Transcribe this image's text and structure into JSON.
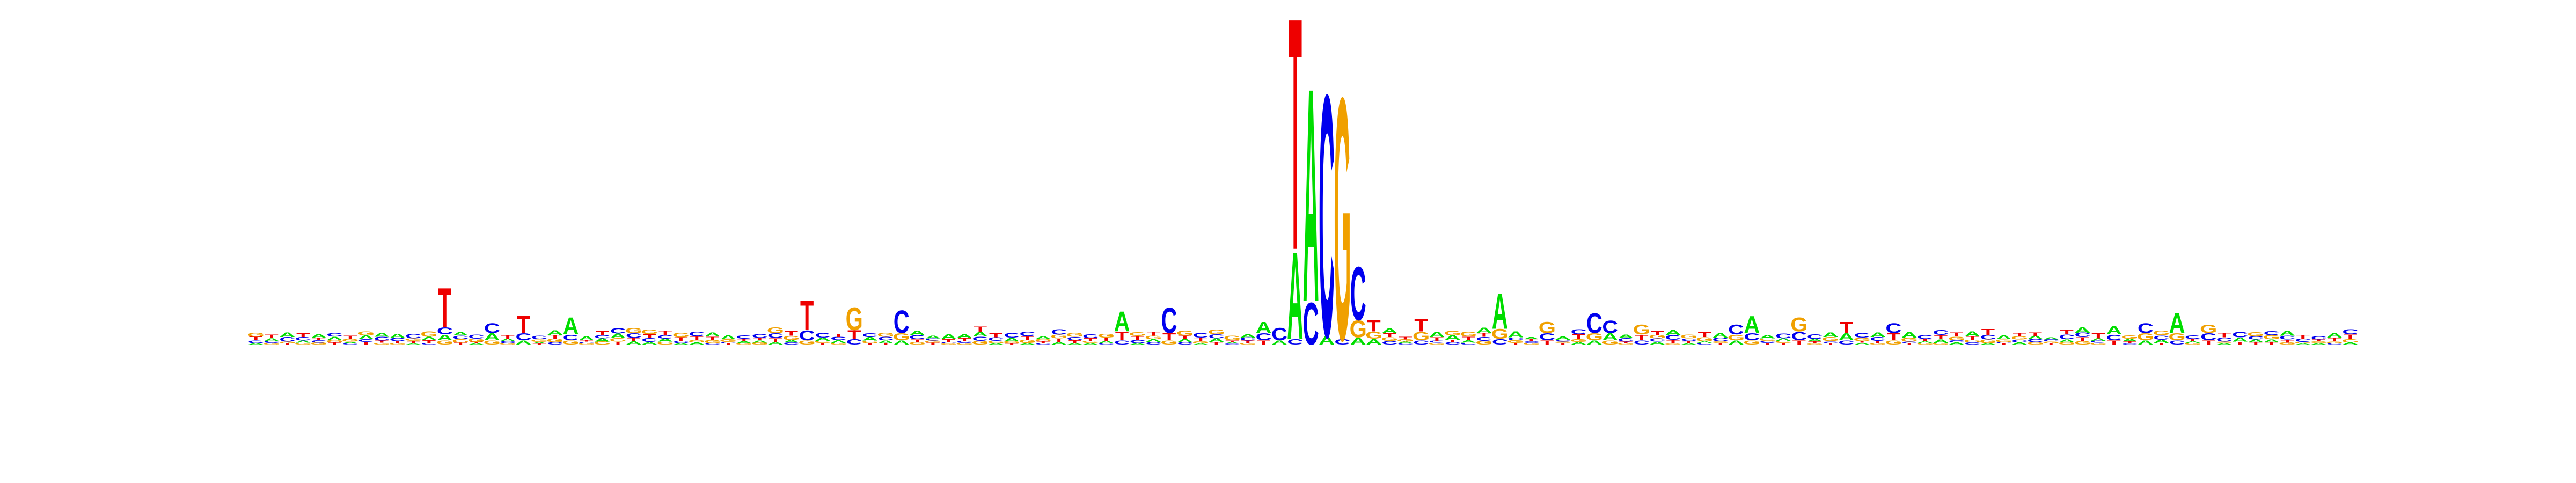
{
  "figure": {
    "type": "sequence-logo",
    "alphabet": [
      "A",
      "C",
      "G",
      "T"
    ],
    "colors": {
      "A": "#00dd00",
      "C": "#0000ee",
      "G": "#f0a000",
      "T": "#ee0000"
    }
  },
  "chart_data": {
    "type": "sequence-logo",
    "title": "",
    "xlabel": "",
    "ylabel": "",
    "ylim": [
      0,
      2
    ],
    "num_positions": 134,
    "peaks": [
      {
        "pos": 12,
        "letters": [
          [
            "T",
            0.28
          ],
          [
            "C",
            0.05
          ],
          [
            "A",
            0.04
          ],
          [
            "G",
            0.03
          ]
        ]
      },
      {
        "pos": 15,
        "letters": [
          [
            "C",
            0.07
          ],
          [
            "A",
            0.05
          ],
          [
            "G",
            0.03
          ]
        ]
      },
      {
        "pos": 17,
        "letters": [
          [
            "T",
            0.12
          ],
          [
            "C",
            0.05
          ],
          [
            "A",
            0.03
          ]
        ]
      },
      {
        "pos": 20,
        "letters": [
          [
            "A",
            0.12
          ],
          [
            "C",
            0.04
          ],
          [
            "G",
            0.03
          ]
        ]
      },
      {
        "pos": 35,
        "letters": [
          [
            "T",
            0.21
          ],
          [
            "C",
            0.07
          ],
          [
            "G",
            0.03
          ]
        ]
      },
      {
        "pos": 38,
        "letters": [
          [
            "G",
            0.16
          ],
          [
            "T",
            0.06
          ],
          [
            "C",
            0.04
          ]
        ]
      },
      {
        "pos": 41,
        "letters": [
          [
            "C",
            0.16
          ],
          [
            "G",
            0.05
          ],
          [
            "A",
            0.03
          ]
        ]
      },
      {
        "pos": 55,
        "letters": [
          [
            "A",
            0.14
          ],
          [
            "T",
            0.06
          ],
          [
            "C",
            0.03
          ]
        ]
      },
      {
        "pos": 58,
        "letters": [
          [
            "C",
            0.18
          ],
          [
            "T",
            0.05
          ],
          [
            "G",
            0.03
          ]
        ]
      },
      {
        "pos": 64,
        "letters": [
          [
            "A",
            0.08
          ],
          [
            "C",
            0.05
          ],
          [
            "T",
            0.03
          ]
        ]
      },
      {
        "pos": 65,
        "letters": [
          [
            "C",
            0.09
          ],
          [
            "A",
            0.03
          ]
        ]
      },
      {
        "pos": 66,
        "letters": [
          [
            "T",
            1.65
          ],
          [
            "A",
            0.62
          ],
          [
            "C",
            0.04
          ]
        ]
      },
      {
        "pos": 67,
        "letters": [
          [
            "C",
            0.3
          ],
          [
            "A",
            1.52
          ]
        ]
      },
      {
        "pos": 68,
        "letters": [
          [
            "A",
            0.06
          ],
          [
            "C",
            1.72
          ]
        ]
      },
      {
        "pos": 69,
        "letters": [
          [
            "G",
            1.72
          ],
          [
            "C",
            0.04
          ]
        ]
      },
      {
        "pos": 70,
        "letters": [
          [
            "C",
            0.38
          ],
          [
            "G",
            0.12
          ],
          [
            "A",
            0.05
          ]
        ]
      },
      {
        "pos": 71,
        "letters": [
          [
            "T",
            0.08
          ],
          [
            "G",
            0.05
          ],
          [
            "A",
            0.04
          ]
        ]
      },
      {
        "pos": 74,
        "letters": [
          [
            "T",
            0.09
          ],
          [
            "G",
            0.06
          ],
          [
            "C",
            0.03
          ]
        ]
      },
      {
        "pos": 79,
        "letters": [
          [
            "A",
            0.25
          ],
          [
            "G",
            0.07
          ],
          [
            "C",
            0.04
          ]
        ]
      },
      {
        "pos": 82,
        "letters": [
          [
            "G",
            0.08
          ],
          [
            "C",
            0.05
          ],
          [
            "T",
            0.03
          ]
        ]
      },
      {
        "pos": 85,
        "letters": [
          [
            "C",
            0.14
          ],
          [
            "G",
            0.05
          ],
          [
            "A",
            0.03
          ]
        ]
      },
      {
        "pos": 86,
        "letters": [
          [
            "C",
            0.09
          ],
          [
            "A",
            0.05
          ],
          [
            "G",
            0.03
          ]
        ]
      },
      {
        "pos": 88,
        "letters": [
          [
            "G",
            0.07
          ],
          [
            "T",
            0.04
          ],
          [
            "C",
            0.03
          ]
        ]
      },
      {
        "pos": 94,
        "letters": [
          [
            "C",
            0.07
          ],
          [
            "G",
            0.04
          ],
          [
            "A",
            0.03
          ]
        ]
      },
      {
        "pos": 95,
        "letters": [
          [
            "A",
            0.12
          ],
          [
            "C",
            0.05
          ],
          [
            "G",
            0.03
          ]
        ]
      },
      {
        "pos": 98,
        "letters": [
          [
            "G",
            0.1
          ],
          [
            "C",
            0.06
          ],
          [
            "T",
            0.03
          ]
        ]
      },
      {
        "pos": 101,
        "letters": [
          [
            "T",
            0.08
          ],
          [
            "A",
            0.05
          ],
          [
            "C",
            0.03
          ]
        ]
      },
      {
        "pos": 104,
        "letters": [
          [
            "C",
            0.07
          ],
          [
            "T",
            0.05
          ],
          [
            "G",
            0.03
          ]
        ]
      },
      {
        "pos": 118,
        "letters": [
          [
            "A",
            0.06
          ],
          [
            "C",
            0.04
          ],
          [
            "T",
            0.03
          ]
        ]
      },
      {
        "pos": 120,
        "letters": [
          [
            "C",
            0.07
          ],
          [
            "G",
            0.05
          ],
          [
            "A",
            0.03
          ]
        ]
      },
      {
        "pos": 122,
        "letters": [
          [
            "A",
            0.14
          ],
          [
            "G",
            0.05
          ],
          [
            "C",
            0.03
          ]
        ]
      },
      {
        "pos": 124,
        "letters": [
          [
            "G",
            0.06
          ],
          [
            "C",
            0.05
          ],
          [
            "T",
            0.03
          ]
        ]
      },
      {
        "pos": 126,
        "letters": [
          [
            "C",
            0.04
          ],
          [
            "A",
            0.03
          ],
          [
            "T",
            0.02
          ]
        ]
      }
    ]
  }
}
